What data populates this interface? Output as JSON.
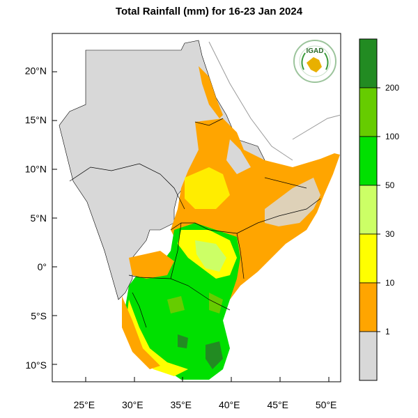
{
  "title": "Total Rainfall (mm) for 16-23 Jan 2024",
  "logo": {
    "text": "IGAD"
  },
  "colors": {
    "no_data_land": "#d8d8d8",
    "class_1_10": "#ffa500",
    "class_10_30": "#ffff00",
    "class_30_50": "#ccff66",
    "class_50_100": "#00e000",
    "class_100_200": "#66cc00",
    "class_200_plus": "#228b22"
  },
  "map": {
    "lat_ticks": [
      "20°N",
      "15°N",
      "10°N",
      "5°N",
      "0°",
      "5°S",
      "10°S"
    ],
    "lon_ticks": [
      "25°E",
      "30°E",
      "35°E",
      "40°E",
      "45°E",
      "50°E"
    ],
    "lat_values": [
      20,
      15,
      10,
      5,
      0,
      -5,
      -10
    ],
    "lon_values": [
      25,
      30,
      35,
      40,
      45,
      50
    ],
    "lat_range": [
      -11.7,
      23.8
    ],
    "lon_range": [
      21.7,
      51.5
    ]
  },
  "colorbar": {
    "labels": [
      "200",
      "100",
      "50",
      "30",
      "10",
      "1"
    ],
    "bins": [
      {
        "name": "200+",
        "color": "#228b22"
      },
      {
        "name": "100-200",
        "color": "#66cc00"
      },
      {
        "name": "50-100",
        "color": "#00e000"
      },
      {
        "name": "30-50",
        "color": "#ccff66"
      },
      {
        "name": "10-30",
        "color": "#ffff00"
      },
      {
        "name": "1-10",
        "color": "#ffa500"
      },
      {
        "name": "<1",
        "color": "#d8d8d8"
      }
    ]
  }
}
